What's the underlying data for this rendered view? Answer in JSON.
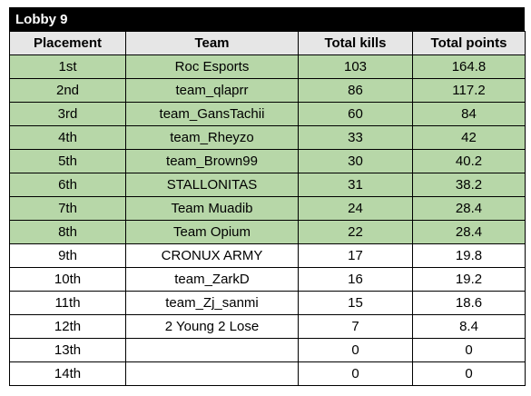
{
  "title": "Lobby 9",
  "table": {
    "columns": [
      "Placement",
      "Team",
      "Total kills",
      "Total points"
    ],
    "rows": [
      [
        "1st",
        "Roc Esports",
        103,
        164.8
      ],
      [
        "2nd",
        "team_qlaprr",
        86,
        117.2
      ],
      [
        "3rd",
        "team_GansTachii",
        60,
        84
      ],
      [
        "4th",
        "team_Rheyzo",
        33,
        42
      ],
      [
        "5th",
        "team_Brown99",
        30,
        40.2
      ],
      [
        "6th",
        "STALLONITAS",
        31,
        38.2
      ],
      [
        "7th",
        "Team Muadib",
        24,
        28.4
      ],
      [
        "8th",
        "Team Opium",
        22,
        28.4
      ],
      [
        "9th",
        "CRONUX ARMY",
        17,
        19.8
      ],
      [
        "10th",
        "team_ZarkD",
        16,
        19.2
      ],
      [
        "11th",
        "team_Zj_sanmi",
        15,
        18.6
      ],
      [
        "12th",
        "2 Young 2 Lose",
        7,
        8.4
      ],
      [
        "13th",
        null,
        0,
        0
      ],
      [
        "14th",
        null,
        0,
        0
      ]
    ]
  }
}
